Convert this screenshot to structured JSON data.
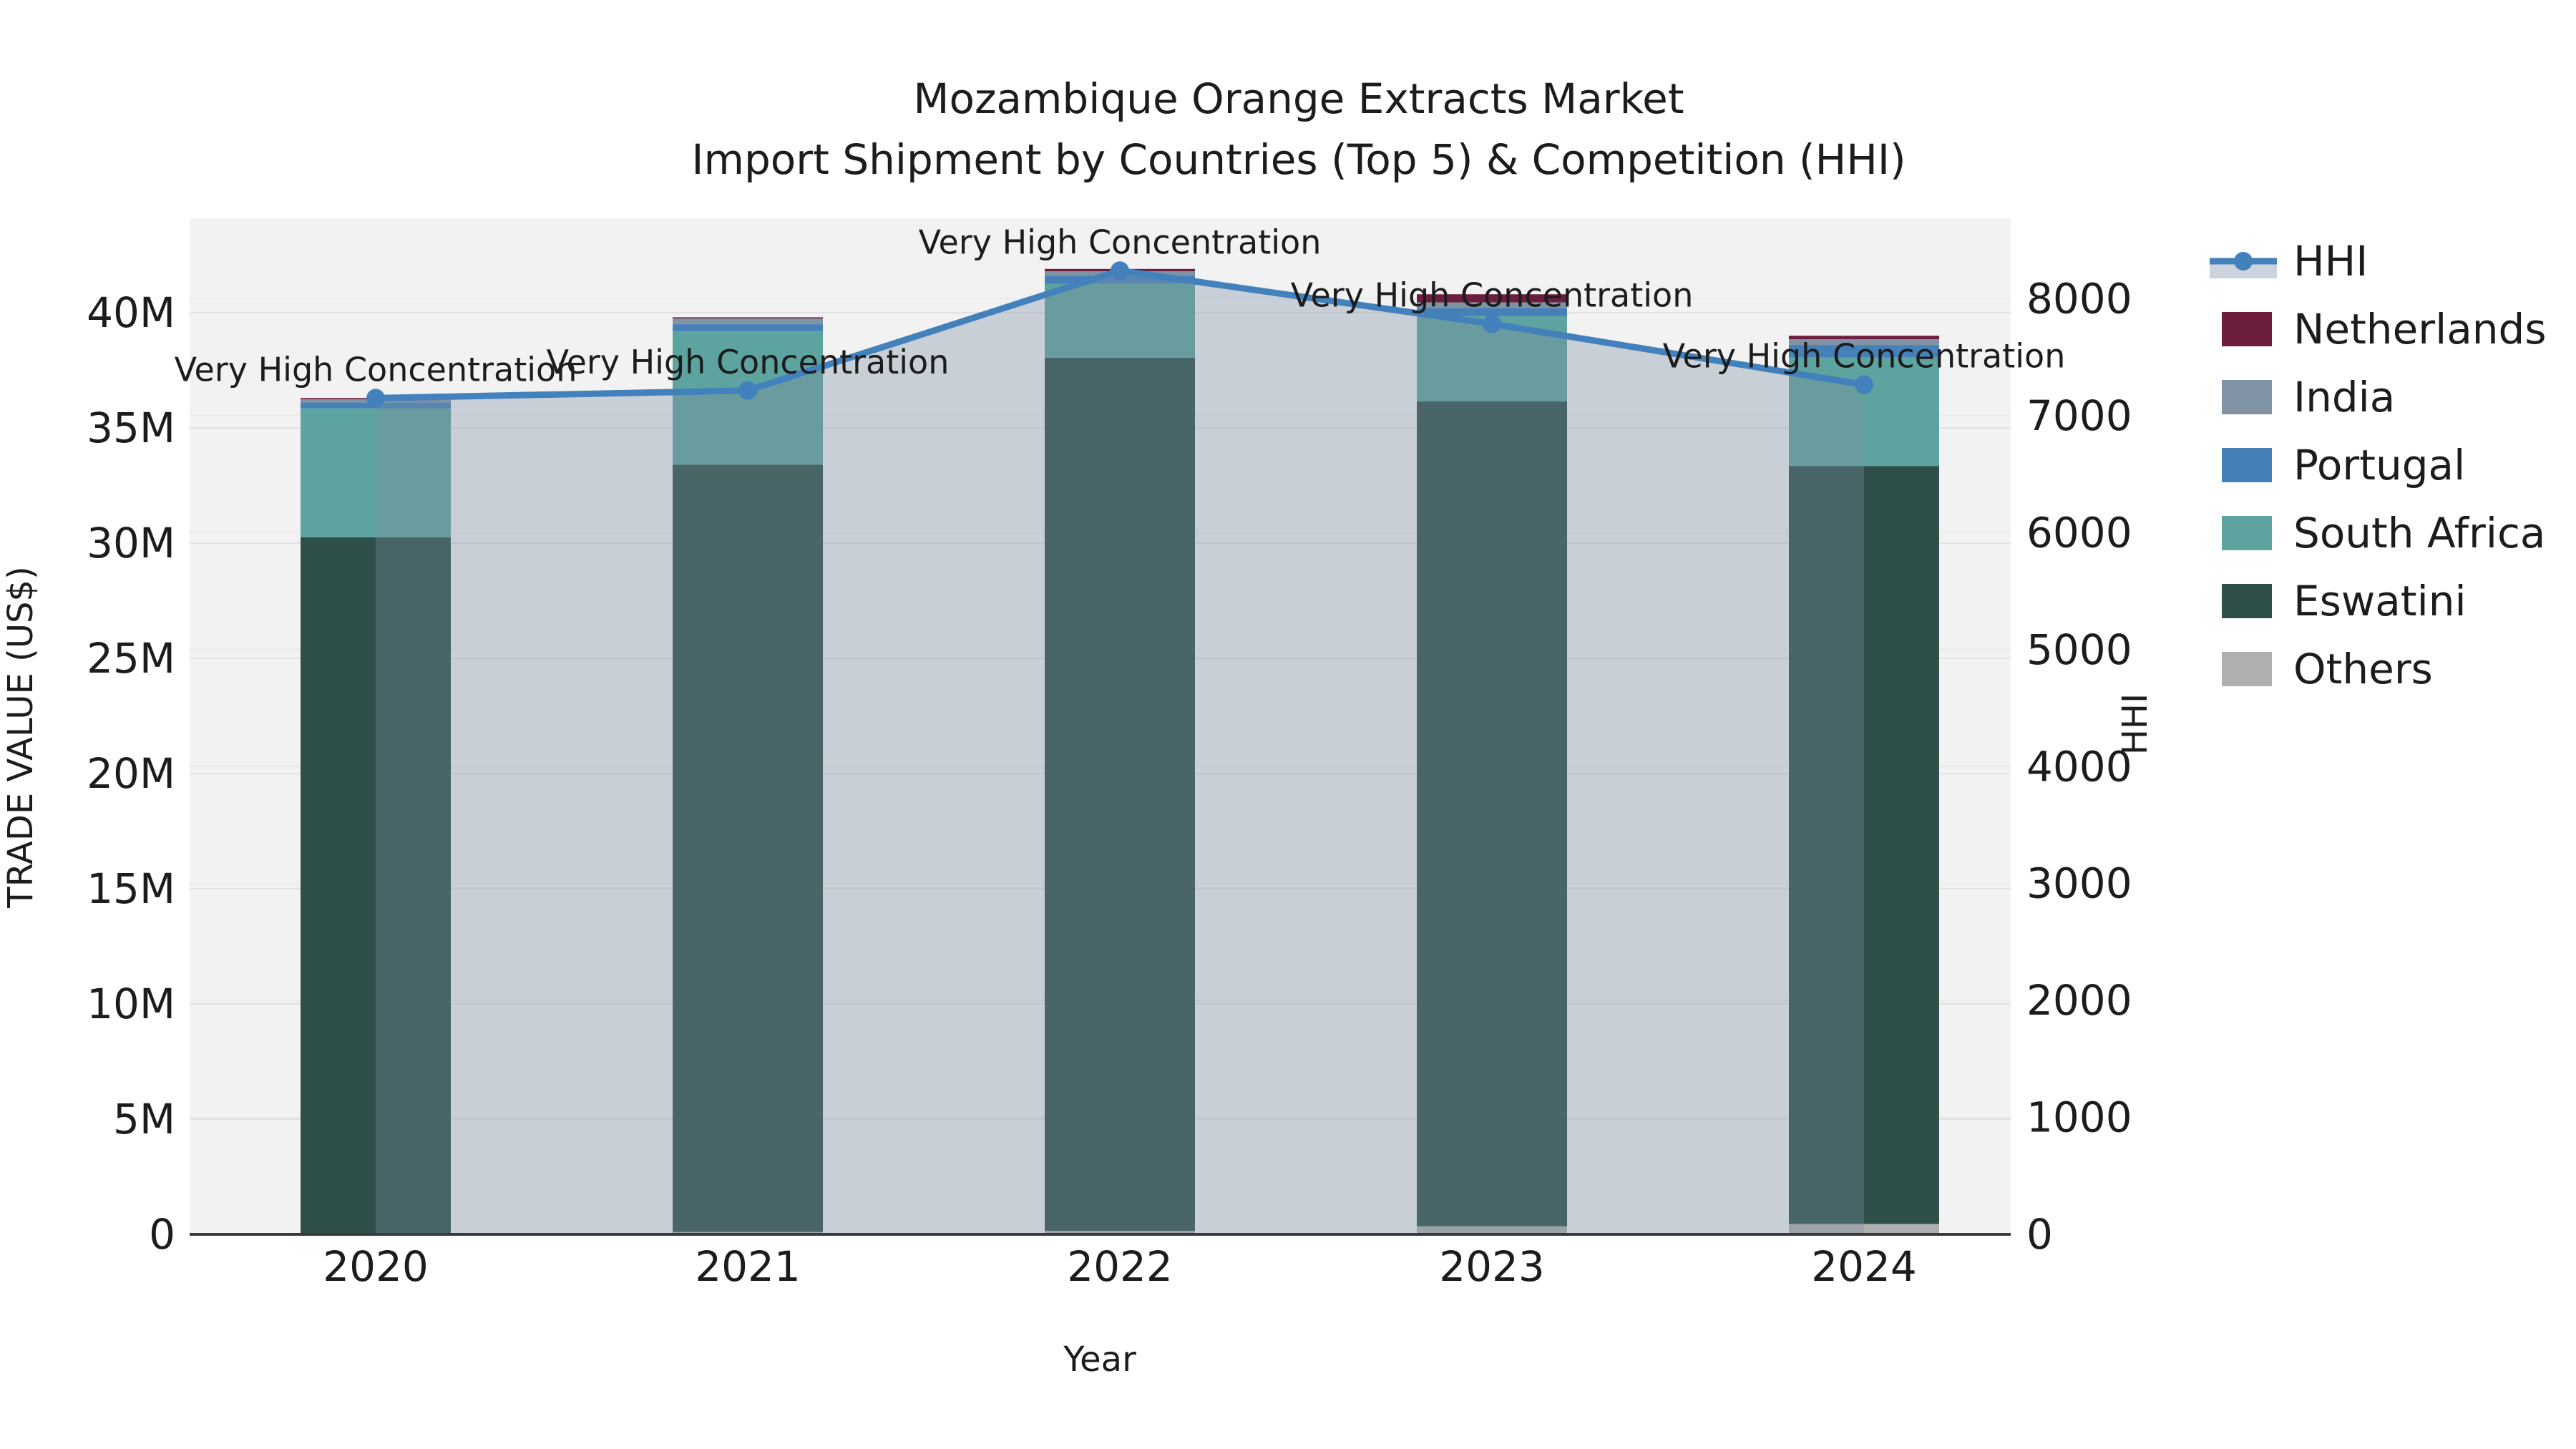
{
  "title": {
    "line1": "Mozambique Orange Extracts Market",
    "line2": "Import Shipment by Countries (Top 5) & Competition (HHI)"
  },
  "chart_data": {
    "type": "bar+line",
    "title": "Mozambique Orange Extracts Market — Import Shipment by Countries (Top 5) & Competition (HHI)",
    "categories": [
      "2020",
      "2021",
      "2022",
      "2023",
      "2024"
    ],
    "xlabel": "Year",
    "y_left": {
      "label": "TRADE VALUE (US$)",
      "tick_labels": [
        "0",
        "5M",
        "10M",
        "15M",
        "20M",
        "25M",
        "30M",
        "35M",
        "40M"
      ],
      "tick_values_millions": [
        0,
        5,
        10,
        15,
        20,
        25,
        30,
        35,
        40
      ],
      "axis_max_millions": 44.1,
      "grid": true
    },
    "y_right": {
      "label": "HHI",
      "tick_labels": [
        "0",
        "1000",
        "2000",
        "3000",
        "4000",
        "5000",
        "6000",
        "7000",
        "8000"
      ],
      "tick_values": [
        0,
        1000,
        2000,
        3000,
        4000,
        5000,
        6000,
        7000,
        8000
      ],
      "axis_max": 8680,
      "grid": true
    },
    "bar_series_bottom_to_top": [
      {
        "name": "Others",
        "color": "#adb0ae",
        "values_millions": [
          0.05,
          0.1,
          0.15,
          0.35,
          0.45
        ]
      },
      {
        "name": "Eswatini",
        "color": "#2f4f4b",
        "values_millions": [
          30.2,
          33.3,
          37.9,
          35.8,
          32.9
        ]
      },
      {
        "name": "South Africa",
        "color": "#5da39f",
        "values_millions": [
          5.6,
          5.8,
          3.2,
          3.7,
          4.7
        ]
      },
      {
        "name": "Portugal",
        "color": "#4581b8",
        "values_millions": [
          0.25,
          0.3,
          0.35,
          0.35,
          0.55
        ]
      },
      {
        "name": "India",
        "color": "#8093a5",
        "values_millions": [
          0.15,
          0.25,
          0.2,
          0.25,
          0.25
        ]
      },
      {
        "name": "Netherlands",
        "color": "#6d1e3f",
        "values_millions": [
          0.05,
          0.05,
          0.1,
          0.35,
          0.15
        ]
      }
    ],
    "bar_totals_millions": [
      36.3,
      39.8,
      41.9,
      40.8,
      39.0
    ],
    "line_series": {
      "name": "HHI",
      "color": "#4381bd",
      "values": [
        7150,
        7215,
        8240,
        7785,
        7265
      ],
      "area_fill": "rgba(125,144,160,0.35)"
    },
    "annotations": [
      {
        "year": "2020",
        "text": "Very High Concentration"
      },
      {
        "year": "2021",
        "text": "Very High Concentration"
      },
      {
        "year": "2022",
        "text": "Very High Concentration"
      },
      {
        "year": "2023",
        "text": "Very High Concentration"
      },
      {
        "year": "2024",
        "text": "Very High Concentration"
      }
    ],
    "legend": [
      {
        "label": "HHI",
        "type": "line",
        "color": "#4381bd",
        "band_color": "#ccd3dc"
      },
      {
        "label": "Netherlands",
        "type": "patch",
        "color": "#6d1e3f"
      },
      {
        "label": "India",
        "type": "patch",
        "color": "#8093a5"
      },
      {
        "label": "Portugal",
        "type": "patch",
        "color": "#4581b8"
      },
      {
        "label": "South Africa",
        "type": "patch",
        "color": "#5da39f"
      },
      {
        "label": "Eswatini",
        "type": "patch",
        "color": "#2f4f4b"
      },
      {
        "label": "Others",
        "type": "patch",
        "color": "#adb0ae"
      }
    ],
    "layout_hints": {
      "plot_background": "#f2f2f3",
      "gridline_color_left": "#e1e2e4",
      "gridline_color_right": "#e9eaec",
      "baseline_color": "#3a3a3a",
      "legend_position": "right-outside"
    }
  }
}
